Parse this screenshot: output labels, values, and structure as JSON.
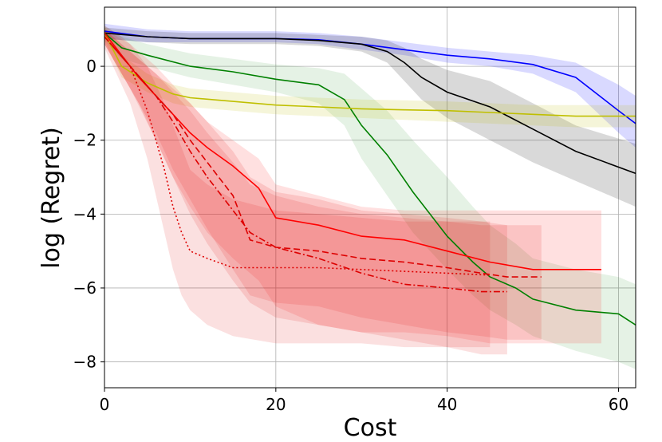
{
  "chart_data": {
    "type": "line",
    "title": "",
    "xlabel": "Cost",
    "ylabel": "log (Regret)",
    "xlim": [
      0,
      62
    ],
    "ylim": [
      -8.7,
      1.6
    ],
    "grid": true,
    "legend": "none",
    "x_ticks": [
      0,
      20,
      40,
      60
    ],
    "x_tick_labels": [
      "0",
      "20",
      "40",
      "60"
    ],
    "y_ticks": [
      -8,
      -6,
      -4,
      -2,
      0
    ],
    "y_tick_labels": [
      "−8",
      "−6",
      "−4",
      "−2",
      "0"
    ],
    "series": [
      {
        "name": "blue",
        "color": "#0000ff",
        "dash": "solid",
        "band_opacity": 0.15,
        "x": [
          0,
          5,
          10,
          20,
          25,
          30,
          35,
          40,
          45,
          50,
          55,
          60,
          62
        ],
        "y": [
          0.95,
          0.8,
          0.75,
          0.75,
          0.72,
          0.6,
          0.45,
          0.3,
          0.2,
          0.05,
          -0.3,
          -1.2,
          -1.55
        ],
        "lower": [
          0.75,
          0.65,
          0.65,
          0.65,
          0.6,
          0.45,
          0.3,
          0.1,
          0.0,
          -0.2,
          -0.7,
          -1.8,
          -2.2
        ],
        "upper": [
          1.15,
          1.0,
          0.95,
          0.95,
          0.9,
          0.8,
          0.65,
          0.5,
          0.4,
          0.3,
          0.1,
          -0.5,
          -0.8
        ]
      },
      {
        "name": "black",
        "color": "#000000",
        "dash": "solid",
        "band_opacity": 0.15,
        "x": [
          0,
          5,
          10,
          20,
          25,
          30,
          33,
          35,
          37,
          40,
          45,
          50,
          55,
          62
        ],
        "y": [
          0.9,
          0.8,
          0.75,
          0.75,
          0.7,
          0.6,
          0.4,
          0.1,
          -0.3,
          -0.7,
          -1.1,
          -1.7,
          -2.3,
          -2.9
        ],
        "lower": [
          0.75,
          0.65,
          0.6,
          0.6,
          0.55,
          0.4,
          0.1,
          -0.4,
          -0.9,
          -1.4,
          -2.0,
          -2.6,
          -3.1,
          -3.8
        ],
        "upper": [
          1.05,
          0.95,
          0.9,
          0.9,
          0.85,
          0.8,
          0.7,
          0.5,
          0.2,
          -0.1,
          -0.4,
          -1.0,
          -1.6,
          -2.1
        ]
      },
      {
        "name": "green",
        "color": "#008000",
        "dash": "solid",
        "band_opacity": 0.1,
        "x": [
          0,
          2,
          5,
          10,
          15,
          20,
          25,
          28,
          30,
          33,
          36,
          40,
          43,
          45,
          48,
          50,
          55,
          60,
          62
        ],
        "y": [
          0.9,
          0.5,
          0.3,
          0.0,
          -0.15,
          -0.35,
          -0.5,
          -0.9,
          -1.6,
          -2.4,
          -3.4,
          -4.6,
          -5.3,
          -5.7,
          -6.0,
          -6.3,
          -6.6,
          -6.7,
          -7.0
        ],
        "lower": [
          0.7,
          0.2,
          0.0,
          -0.3,
          -0.5,
          -0.7,
          -1.0,
          -1.6,
          -2.5,
          -3.5,
          -4.5,
          -5.5,
          -6.2,
          -6.6,
          -7.0,
          -7.3,
          -7.7,
          -8.0,
          -8.2
        ],
        "upper": [
          1.1,
          0.8,
          0.6,
          0.35,
          0.2,
          0.05,
          -0.05,
          -0.2,
          -0.6,
          -1.2,
          -2.0,
          -3.0,
          -3.8,
          -4.3,
          -4.8,
          -5.2,
          -5.5,
          -5.7,
          -5.9
        ]
      },
      {
        "name": "yellow",
        "color": "#bfbf00",
        "dash": "solid",
        "band_opacity": 0.15,
        "x": [
          0,
          2,
          5,
          8,
          10,
          15,
          20,
          25,
          30,
          35,
          40,
          45,
          50,
          55,
          62
        ],
        "y": [
          0.9,
          0.0,
          -0.45,
          -0.75,
          -0.85,
          -0.95,
          -1.05,
          -1.1,
          -1.15,
          -1.18,
          -1.2,
          -1.25,
          -1.3,
          -1.35,
          -1.35
        ],
        "lower": [
          0.7,
          -0.3,
          -0.7,
          -1.0,
          -1.1,
          -1.2,
          -1.3,
          -1.35,
          -1.4,
          -1.45,
          -1.5,
          -1.55,
          -1.6,
          -1.65,
          -1.65
        ],
        "upper": [
          1.1,
          0.3,
          -0.2,
          -0.5,
          -0.6,
          -0.7,
          -0.8,
          -0.85,
          -0.9,
          -0.92,
          -0.95,
          -1.0,
          -1.05,
          -1.05,
          -1.05
        ]
      },
      {
        "name": "red-solid",
        "color": "#ff0000",
        "dash": "solid",
        "band_opacity": 0.12,
        "x": [
          0,
          2,
          4,
          6,
          8,
          10,
          12,
          15,
          18,
          20,
          25,
          30,
          35,
          40,
          45,
          50,
          58
        ],
        "y": [
          0.9,
          0.3,
          -0.3,
          -0.8,
          -1.3,
          -1.8,
          -2.2,
          -2.7,
          -3.3,
          -4.1,
          -4.3,
          -4.6,
          -4.7,
          -5.0,
          -5.3,
          -5.5,
          -5.5
        ],
        "lower": [
          0.6,
          -0.2,
          -1.0,
          -2.0,
          -3.0,
          -3.8,
          -4.5,
          -5.2,
          -5.8,
          -6.5,
          -7.0,
          -7.2,
          -7.2,
          -7.3,
          -7.5,
          -7.5,
          -7.5
        ],
        "upper": [
          1.1,
          0.8,
          0.4,
          0.0,
          -0.5,
          -1.0,
          -1.5,
          -2.0,
          -2.5,
          -3.2,
          -3.5,
          -3.8,
          -3.9,
          -3.9,
          -3.9,
          -3.9,
          -3.9
        ]
      },
      {
        "name": "red-dashed",
        "color": "#dd0000",
        "dash": "8,4",
        "band_opacity": 0.12,
        "x": [
          0,
          3,
          6,
          8,
          10,
          12,
          15,
          17,
          20,
          25,
          30,
          35,
          40,
          44,
          47,
          51
        ],
        "y": [
          0.8,
          0.0,
          -0.8,
          -1.3,
          -2.0,
          -2.6,
          -3.5,
          -4.7,
          -4.9,
          -5.0,
          -5.2,
          -5.3,
          -5.45,
          -5.6,
          -5.7,
          -5.7
        ],
        "lower": [
          0.6,
          -0.6,
          -1.8,
          -2.8,
          -3.6,
          -4.4,
          -5.5,
          -6.2,
          -6.4,
          -6.5,
          -6.8,
          -7.0,
          -7.2,
          -7.3,
          -7.4,
          -7.4
        ],
        "upper": [
          1.0,
          0.4,
          -0.2,
          -0.6,
          -1.0,
          -1.5,
          -2.3,
          -3.0,
          -3.4,
          -3.6,
          -3.9,
          -4.0,
          -4.1,
          -4.2,
          -4.3,
          -4.3
        ]
      },
      {
        "name": "red-dashdot",
        "color": "#dd0000",
        "dash": "8,3,2,3",
        "band_opacity": 0.12,
        "x": [
          0,
          3,
          6,
          8,
          10,
          12,
          15,
          17,
          20,
          25,
          30,
          35,
          40,
          44,
          47
        ],
        "y": [
          0.8,
          0.0,
          -0.8,
          -1.5,
          -2.3,
          -3.0,
          -3.9,
          -4.5,
          -4.9,
          -5.2,
          -5.6,
          -5.9,
          -6.0,
          -6.1,
          -6.1
        ],
        "lower": [
          0.6,
          -0.6,
          -2.0,
          -3.0,
          -4.0,
          -4.8,
          -5.8,
          -6.4,
          -6.8,
          -7.0,
          -7.2,
          -7.4,
          -7.6,
          -7.8,
          -7.8
        ],
        "upper": [
          1.0,
          0.4,
          -0.2,
          -0.7,
          -1.2,
          -1.8,
          -2.6,
          -3.2,
          -3.5,
          -3.8,
          -4.0,
          -4.1,
          -4.2,
          -4.3,
          -4.3
        ]
      },
      {
        "name": "red-dotted",
        "color": "#dd0000",
        "dash": "2,3",
        "band_opacity": 0.12,
        "x": [
          0,
          3,
          5,
          6,
          7,
          8,
          9,
          10,
          12,
          15,
          20,
          25,
          30,
          35,
          40,
          45
        ],
        "y": [
          0.8,
          0.0,
          -1.2,
          -2.0,
          -2.8,
          -3.8,
          -4.5,
          -5.0,
          -5.2,
          -5.45,
          -5.45,
          -5.45,
          -5.5,
          -5.55,
          -5.6,
          -5.65
        ],
        "lower": [
          0.5,
          -1.0,
          -2.5,
          -3.5,
          -4.5,
          -5.5,
          -6.2,
          -6.6,
          -7.0,
          -7.3,
          -7.5,
          -7.5,
          -7.5,
          -7.6,
          -7.6,
          -7.6
        ],
        "upper": [
          1.0,
          0.6,
          0.0,
          -0.5,
          -1.0,
          -1.6,
          -2.2,
          -2.8,
          -3.2,
          -3.6,
          -3.9,
          -4.0,
          -4.1,
          -4.2,
          -4.2,
          -4.2
        ]
      }
    ]
  }
}
